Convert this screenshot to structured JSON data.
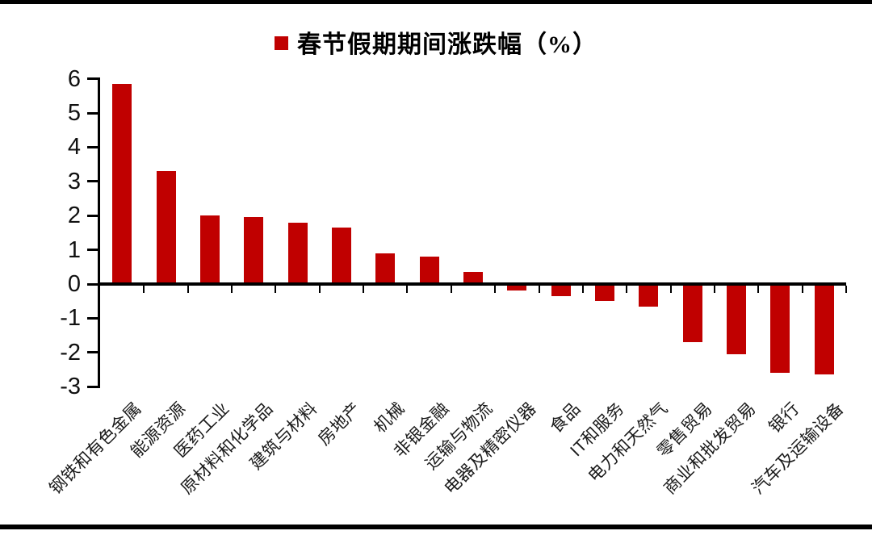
{
  "legend": {
    "marker_color": "#c00000",
    "label": "春节假期期间涨跌幅（%）"
  },
  "chart_data": {
    "type": "bar",
    "title": "春节假期期间涨跌幅（%）",
    "legend_position": "top",
    "grid": false,
    "bar_color": "#c00000",
    "axis_color": "#000000",
    "ylim": [
      -3,
      6
    ],
    "yticks": [
      6,
      5,
      4,
      3,
      2,
      1,
      0,
      -1,
      -2,
      -3
    ],
    "categories": [
      "钢铁和有色金属",
      "能源资源",
      "医药工业",
      "原材料和化学品",
      "建筑与材料",
      "房地产",
      "机械",
      "非银金融",
      "运输与物流",
      "电器及精密仪器",
      "食品",
      "IT和服务",
      "电力和天然气",
      "零售贸易",
      "商业和批发贸易",
      "银行",
      "汽车及运输设备"
    ],
    "values": [
      5.85,
      3.3,
      2.0,
      1.95,
      1.8,
      1.65,
      0.9,
      0.8,
      0.35,
      -0.2,
      -0.35,
      -0.5,
      -0.65,
      -1.7,
      -2.05,
      -2.6,
      -2.65
    ]
  }
}
